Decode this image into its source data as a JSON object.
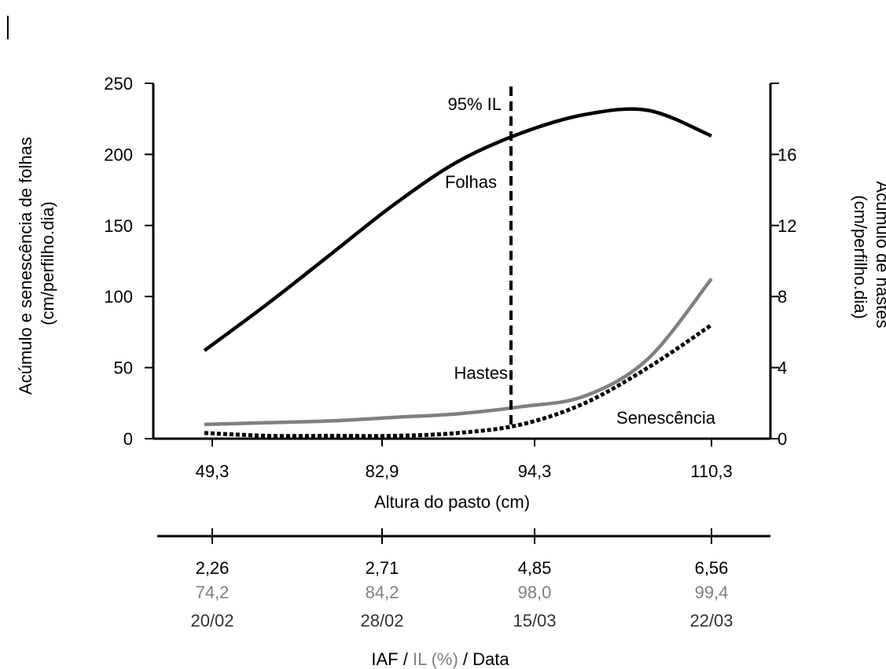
{
  "chart_data": {
    "type": "line",
    "x_tick_labels": [
      "49,3",
      "82,9",
      "94,3",
      "110,3"
    ],
    "xlabel": "Altura do pasto (cm)",
    "ylabel_left": [
      "Acúmulo e senescência de folhas",
      "(cm/perfilho.dia)"
    ],
    "ylabel_right": [
      "Acúmulo de hastes",
      "(cm/perfilho.dia)"
    ],
    "ylim_left": [
      0,
      250
    ],
    "yticks_left": [
      "0",
      "50",
      "100",
      "150",
      "200",
      "250"
    ],
    "ylim_right": [
      0,
      20
    ],
    "yticks_right": [
      "0",
      "4",
      "8",
      "12",
      "16"
    ],
    "xlim": [
      0.0,
      5.0
    ],
    "grid": false,
    "series": [
      {
        "name": "Folhas",
        "axis": "left",
        "color": "#000000",
        "style": "solid",
        "x": [
          1.0,
          1.5,
          2.0,
          2.5,
          3.0,
          3.5,
          4.0,
          4.5,
          5.0
        ],
        "y": [
          62,
          95,
          130,
          165,
          195,
          215,
          228,
          231,
          213
        ]
      },
      {
        "name": "Hastes",
        "axis": "right",
        "color": "#808080",
        "style": "solid",
        "x": [
          1.0,
          1.5,
          2.0,
          2.5,
          3.0,
          3.5,
          4.0,
          4.5,
          5.0
        ],
        "y": [
          0.8,
          0.9,
          1.0,
          1.2,
          1.4,
          1.8,
          2.4,
          4.5,
          9.0
        ]
      },
      {
        "name": "Senescência",
        "axis": "left",
        "color": "#000000",
        "style": "dotted",
        "x": [
          1.0,
          1.5,
          2.0,
          2.5,
          3.0,
          3.5,
          4.0,
          4.5,
          5.0
        ],
        "y": [
          4,
          2,
          2,
          2,
          4,
          10,
          25,
          50,
          80
        ]
      }
    ],
    "vertical_line": {
      "x": 3.5,
      "label": "95% IL"
    },
    "secondary_axis": {
      "rows": [
        {
          "name": "IAF",
          "color": "#000000",
          "values": [
            "2,26",
            "2,71",
            "4,85",
            "6,56"
          ]
        },
        {
          "name": "IL (%)",
          "color": "#808080",
          "values": [
            "74,2",
            "84,2",
            "98,0",
            "99,4"
          ]
        },
        {
          "name": "Data",
          "color": "#333333",
          "values": [
            "20/02",
            "28/02",
            "15/03",
            "22/03"
          ]
        }
      ],
      "title_parts": [
        {
          "text": "IAF",
          "color": "#000000"
        },
        {
          "text": " / ",
          "color": "#000000"
        },
        {
          "text": "IL (%)",
          "color": "#808080"
        },
        {
          "text": " / Data",
          "color": "#000000"
        }
      ]
    }
  }
}
